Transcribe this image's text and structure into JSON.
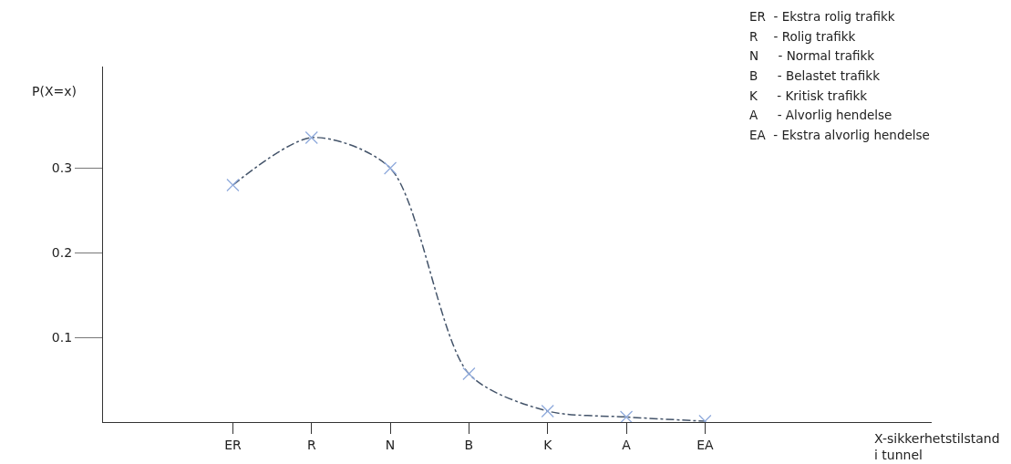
{
  "chart_data": {
    "type": "line",
    "ylabel": "P(X=x)",
    "annotations": [
      "X-sikkerhetstilstand\ni tunnel",
      "ER  - Ekstra rolig trafikk",
      "R    - Rolig trafikk",
      "N     - Normal trafikk",
      "B     - Belastet trafikk",
      "K     - Kritisk trafikk",
      "A     - Alvorlig hendelse",
      "EA  - Ekstra alvorlig hendelse"
    ],
    "categories": [
      "ER",
      "R",
      "N",
      "B",
      "K",
      "A",
      "EA"
    ],
    "ylim": [
      0,
      0.42
    ],
    "yticks": [
      0.1,
      0.2,
      0.3
    ],
    "series": [
      {
        "color": "#44546a",
        "line_style": "dashed",
        "marker": "none",
        "values": [
          0.28,
          0.336,
          0.3,
          0.057,
          0.013,
          0.006,
          0.001
        ]
      },
      {
        "type": "scatter",
        "color": "#8faadc",
        "marker": "cross",
        "values": [
          0.28,
          0.336,
          0.3,
          0.057,
          0.013,
          0.006,
          0.001
        ]
      }
    ]
  }
}
